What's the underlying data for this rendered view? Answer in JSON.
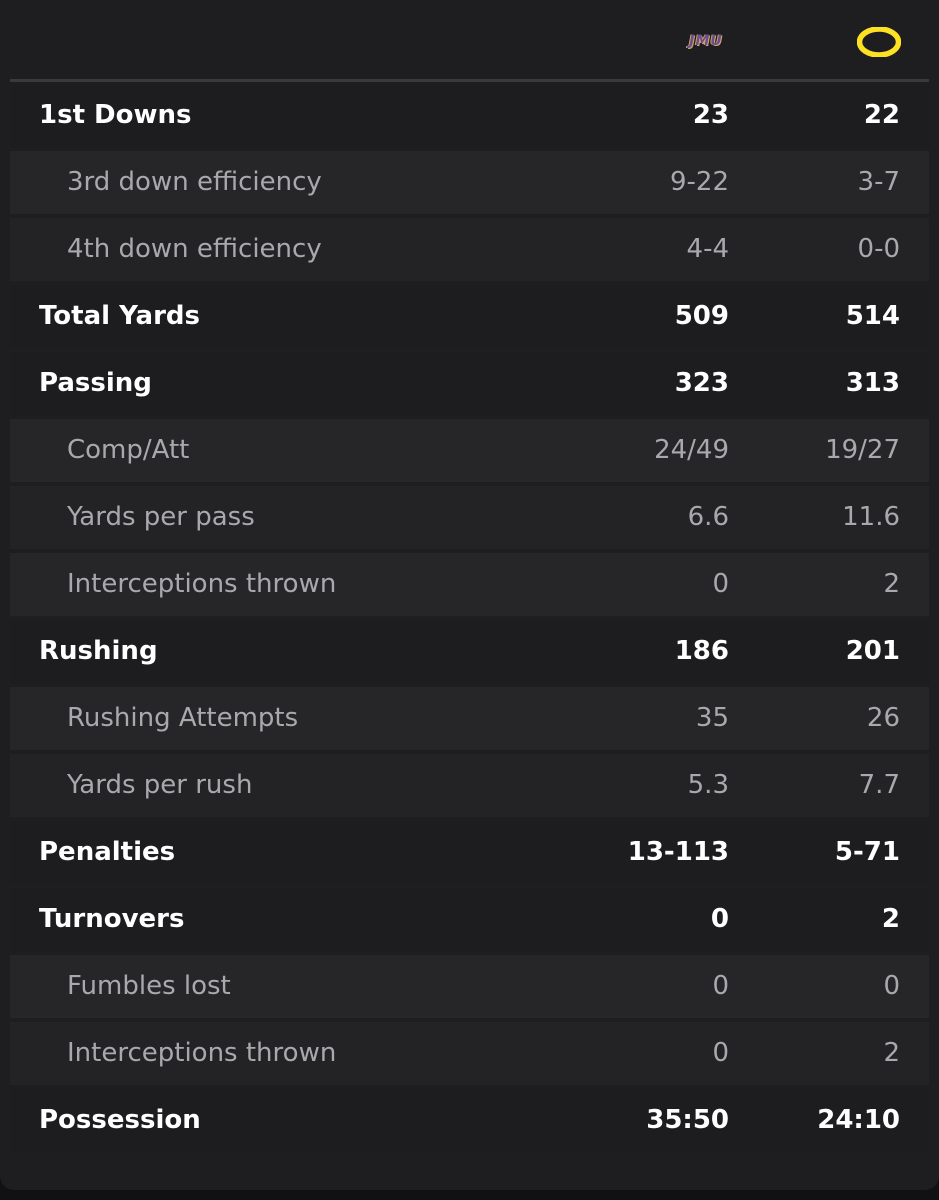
{
  "teams": {
    "away": {
      "logo_text": "JMU",
      "logo_icon": "jmu-dukes-logo",
      "colors": {
        "primary": "#6e4a8f",
        "secondary": "#c8a86b"
      }
    },
    "home": {
      "logo_icon": "oregon-o-logo",
      "colors": {
        "primary": "#fee123",
        "secondary": "#154733"
      }
    }
  },
  "stats": [
    {
      "label": "1st Downs",
      "away": "23",
      "home": "22",
      "type": "main"
    },
    {
      "label": "3rd down efficiency",
      "away": "9-22",
      "home": "3-7",
      "type": "sub"
    },
    {
      "label": "4th down efficiency",
      "away": "4-4",
      "home": "0-0",
      "type": "sub"
    },
    {
      "label": "Total Yards",
      "away": "509",
      "home": "514",
      "type": "main"
    },
    {
      "label": "Passing",
      "away": "323",
      "home": "313",
      "type": "main"
    },
    {
      "label": "Comp/Att",
      "away": "24/49",
      "home": "19/27",
      "type": "sub"
    },
    {
      "label": "Yards per pass",
      "away": "6.6",
      "home": "11.6",
      "type": "sub"
    },
    {
      "label": "Interceptions thrown",
      "away": "0",
      "home": "2",
      "type": "sub"
    },
    {
      "label": "Rushing",
      "away": "186",
      "home": "201",
      "type": "main"
    },
    {
      "label": "Rushing Attempts",
      "away": "35",
      "home": "26",
      "type": "sub"
    },
    {
      "label": "Yards per rush",
      "away": "5.3",
      "home": "7.7",
      "type": "sub"
    },
    {
      "label": "Penalties",
      "away": "13-113",
      "home": "5-71",
      "type": "main"
    },
    {
      "label": "Turnovers",
      "away": "0",
      "home": "2",
      "type": "main"
    },
    {
      "label": "Fumbles lost",
      "away": "0",
      "home": "0",
      "type": "sub"
    },
    {
      "label": "Interceptions thrown",
      "away": "0",
      "home": "2",
      "type": "sub"
    },
    {
      "label": "Possession",
      "away": "35:50",
      "home": "24:10",
      "type": "main"
    }
  ]
}
